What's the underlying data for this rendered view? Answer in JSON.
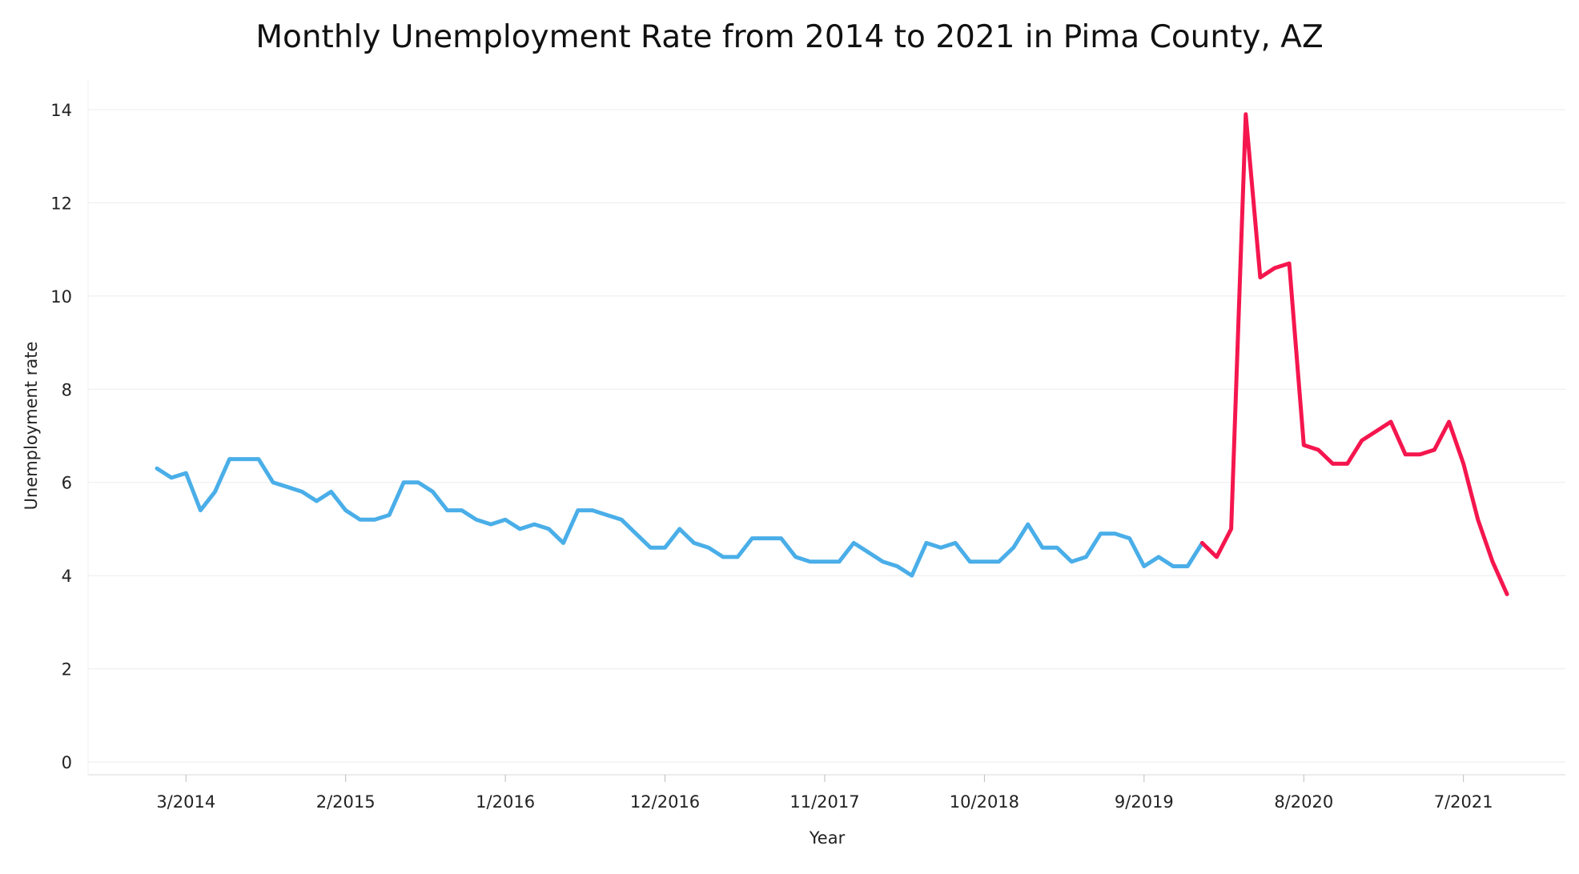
{
  "chart_data": {
    "type": "line",
    "title": "Monthly Unemployment Rate from 2014 to 2021 in Pima County, AZ",
    "xlabel": "Year",
    "ylabel": "Unemployment rate",
    "ylim": [
      0,
      14.5
    ],
    "yticks": [
      0,
      2,
      4,
      6,
      8,
      10,
      12,
      14
    ],
    "xticks": [
      "3/2014",
      "2/2015",
      "1/2016",
      "12/2016",
      "11/2017",
      "10/2018",
      "9/2019",
      "8/2020",
      "7/2021"
    ],
    "grid": true,
    "legend": "none",
    "x_unit": "month",
    "series": [
      {
        "color": "#4aaee8",
        "x": [
          "1/2014",
          "2/2014",
          "3/2014",
          "4/2014",
          "5/2014",
          "6/2014",
          "7/2014",
          "8/2014",
          "9/2014",
          "10/2014",
          "11/2014",
          "12/2014",
          "1/2015",
          "2/2015",
          "3/2015",
          "4/2015",
          "5/2015",
          "6/2015",
          "7/2015",
          "8/2015",
          "9/2015",
          "10/2015",
          "11/2015",
          "12/2015",
          "1/2016",
          "2/2016",
          "3/2016",
          "4/2016",
          "5/2016",
          "6/2016",
          "7/2016",
          "8/2016",
          "9/2016",
          "10/2016",
          "11/2016",
          "12/2016",
          "1/2017",
          "2/2017",
          "3/2017",
          "4/2017",
          "5/2017",
          "6/2017",
          "7/2017",
          "8/2017",
          "9/2017",
          "10/2017",
          "11/2017",
          "12/2017",
          "1/2018",
          "2/2018",
          "3/2018",
          "4/2018",
          "5/2018",
          "6/2018",
          "7/2018",
          "8/2018",
          "9/2018",
          "10/2018",
          "11/2018",
          "12/2018",
          "1/2019",
          "2/2019",
          "3/2019",
          "4/2019",
          "5/2019",
          "6/2019",
          "7/2019",
          "8/2019",
          "9/2019",
          "10/2019",
          "11/2019",
          "12/2019",
          "1/2020"
        ],
        "values": [
          6.3,
          6.1,
          6.2,
          5.4,
          5.8,
          6.5,
          6.5,
          6.5,
          6.0,
          5.9,
          5.8,
          5.6,
          5.8,
          5.4,
          5.2,
          5.2,
          5.3,
          6.0,
          6.0,
          5.8,
          5.4,
          5.4,
          5.2,
          5.1,
          5.2,
          5.0,
          5.1,
          5.0,
          4.7,
          5.4,
          5.4,
          5.3,
          5.2,
          4.9,
          4.6,
          4.6,
          5.0,
          4.7,
          4.6,
          4.4,
          4.4,
          4.8,
          4.8,
          4.8,
          4.4,
          4.3,
          4.3,
          4.3,
          4.7,
          4.5,
          4.3,
          4.2,
          4.0,
          4.7,
          4.6,
          4.7,
          4.3,
          4.3,
          4.3,
          4.6,
          5.1,
          4.6,
          4.6,
          4.3,
          4.4,
          4.9,
          4.9,
          4.8,
          4.2,
          4.4,
          4.2,
          4.2,
          4.7
        ]
      },
      {
        "color": "#f5164e",
        "x": [
          "1/2020",
          "2/2020",
          "3/2020",
          "4/2020",
          "5/2020",
          "6/2020",
          "7/2020",
          "8/2020",
          "9/2020",
          "10/2020",
          "11/2020",
          "12/2020",
          "1/2021",
          "2/2021",
          "3/2021",
          "4/2021",
          "5/2021",
          "6/2021",
          "7/2021",
          "8/2021",
          "9/2021",
          "10/2021"
        ],
        "values": [
          4.7,
          4.4,
          5.0,
          13.9,
          10.4,
          10.6,
          10.7,
          6.8,
          6.7,
          6.4,
          6.4,
          6.9,
          7.1,
          7.3,
          6.6,
          6.6,
          6.7,
          7.3,
          6.4,
          5.2,
          4.3,
          3.6
        ]
      }
    ]
  }
}
